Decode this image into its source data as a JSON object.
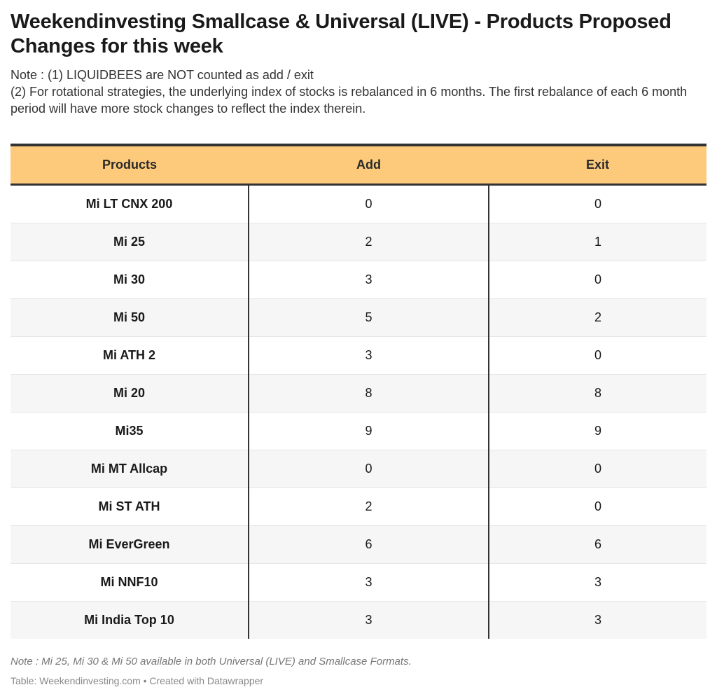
{
  "header": {
    "title": "Weekendinvesting Smallcase & Universal (LIVE) - Products Proposed Changes for this week",
    "note_line1": "Note : (1) LIQUIDBEES are NOT counted as add / exit",
    "note_line2": "(2) For rotational strategies, the underlying index of stocks is rebalanced in 6 months. The first rebalance of each 6 month period will have more stock changes to reflect the index therein."
  },
  "table": {
    "columns": [
      "Products",
      "Add",
      "Exit"
    ],
    "rows": [
      {
        "product": "Mi LT CNX 200",
        "add": "0",
        "exit": "0"
      },
      {
        "product": "Mi 25",
        "add": "2",
        "exit": "1"
      },
      {
        "product": "Mi 30",
        "add": "3",
        "exit": "0"
      },
      {
        "product": "Mi 50",
        "add": "5",
        "exit": "2"
      },
      {
        "product": "Mi ATH 2",
        "add": "3",
        "exit": "0"
      },
      {
        "product": "Mi 20",
        "add": "8",
        "exit": "8"
      },
      {
        "product": "Mi35",
        "add": "9",
        "exit": "9"
      },
      {
        "product": "Mi MT Allcap",
        "add": "0",
        "exit": "0"
      },
      {
        "product": "Mi ST ATH",
        "add": "2",
        "exit": "0"
      },
      {
        "product": "Mi EverGreen",
        "add": "6",
        "exit": "6"
      },
      {
        "product": "Mi NNF10",
        "add": "3",
        "exit": "3"
      },
      {
        "product": "Mi India Top 10",
        "add": "3",
        "exit": "3"
      }
    ]
  },
  "footer": {
    "note": "Note : Mi 25, Mi 30 & Mi 50 available in both Universal (LIVE) and Smallcase Formats.",
    "source": "Table: Weekendinvesting.com • Created with Datawrapper"
  },
  "colors": {
    "header_bg": "#fdca7c",
    "border_dark": "#333333",
    "stripe": "#f6f6f6"
  }
}
